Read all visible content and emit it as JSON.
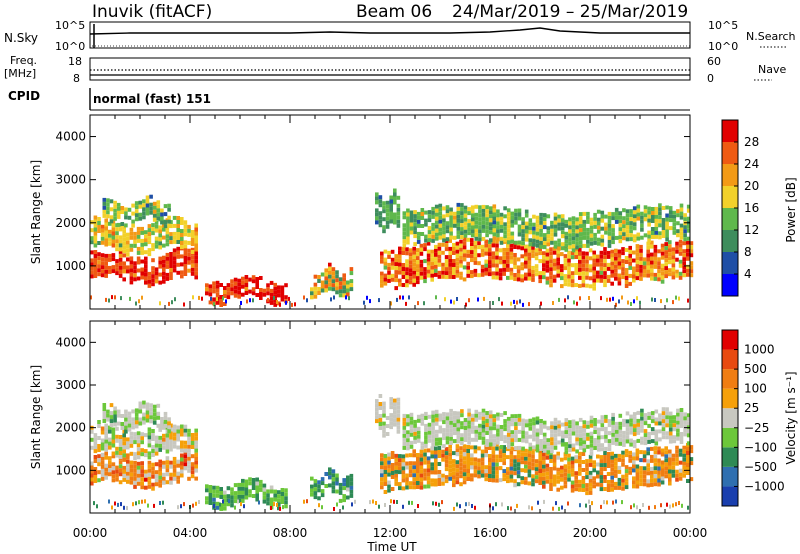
{
  "header": {
    "station": "Inuvik (fitACF)",
    "beam": "Beam 06",
    "dates": "24/Mar/2019 – 25/Mar/2019"
  },
  "labels": {
    "nsky": "N.Sky",
    "nsearch": "N.Search",
    "freq": "Freq.",
    "mhz": "[MHz]",
    "nave": "Nave",
    "cpid": "CPID",
    "cpid_value": "normal (fast) 151",
    "nsky_ticks": [
      "10^5",
      "10^0"
    ],
    "nsearch_ticks": [
      "10^5",
      "10^0"
    ],
    "freq_ticks": [
      "18",
      "8"
    ],
    "nave_ticks": [
      "60",
      "0"
    ]
  },
  "chart_data": [
    {
      "type": "heatmap",
      "panel": "power",
      "ylabel": "Slant Range [km]",
      "colorbar_label": "Power [dB]",
      "colorbar_ticks": [
        "28",
        "24",
        "20",
        "16",
        "12",
        "8",
        "4"
      ],
      "colors": [
        "#0000ff",
        "#1f4fa6",
        "#3e8d5d",
        "#5fb84c",
        "#f2d12a",
        "#f39a16",
        "#ef5a12",
        "#e10000"
      ],
      "ylim": [
        0,
        4500
      ],
      "yticks": [
        "1000",
        "2000",
        "3000",
        "4000"
      ],
      "xlim_hours": [
        0,
        24
      ]
    },
    {
      "type": "heatmap",
      "panel": "velocity",
      "ylabel": "Slant Range [km]",
      "colorbar_label": "Velocity [m s⁻¹]",
      "colorbar_ticks": [
        "1000",
        "500",
        "100",
        "25",
        "−25",
        "−100",
        "−500",
        "−1000"
      ],
      "colors": [
        "#1a3fae",
        "#2f6fb0",
        "#2e8a55",
        "#6cc73a",
        "#c8c8c0",
        "#f5a00a",
        "#f07d12",
        "#e84a10",
        "#e10000"
      ],
      "ylim": [
        0,
        4500
      ],
      "yticks": [
        "1000",
        "2000",
        "3000",
        "4000"
      ],
      "xlim_hours": [
        0,
        24
      ]
    }
  ],
  "xaxis": {
    "ticks": [
      "00:00",
      "04:00",
      "08:00",
      "12:00",
      "16:00",
      "20:00",
      "00:00"
    ],
    "label": "Time UT"
  }
}
